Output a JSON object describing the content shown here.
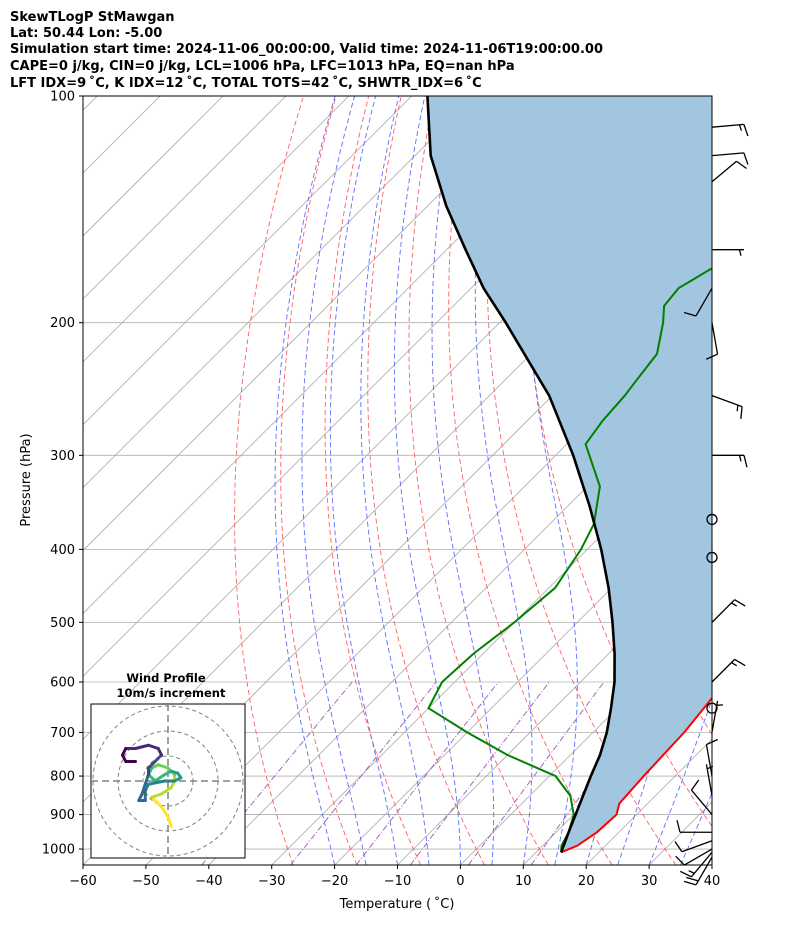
{
  "header": {
    "line1": "SkewTLogP StMawgan",
    "line2": "Lat: 50.44   Lon: -5.00",
    "line3": "Simulation start time: 2024-11-06_00:00:00, Valid time: 2024-11-06T19:00:00.00",
    "line4": "CAPE=0 j/kg, CIN=0 j/kg, LCL=1006 hPa, LFC=1013 hPa, EQ=nan hPa",
    "line5": "LFT IDX=9$^\\circ$C, K IDX=12$^\\circ$C, TOTAL TOTS=42$^\\circ$C, SHWTR_IDX=6$^\\circ$C"
  },
  "header_display": {
    "line5": "LFT IDX=9 ˚C, K IDX=12 ˚C, TOTAL TOTS=42 ˚C, SHWTR_IDX=6 ˚C"
  },
  "hodograph": {
    "title": "Wind Profile",
    "subtitle": "10m/s increment"
  },
  "chart_data": {
    "type": "line",
    "xlabel": "Temperature ( ˚C)",
    "ylabel": "Pressure (hPa)",
    "xlim": [
      -60,
      40
    ],
    "ylim": [
      1050,
      100
    ],
    "y_scale": "log",
    "skew": "45deg",
    "x_ticks": [
      "−60",
      "−50",
      "−40",
      "−30",
      "−20",
      "−10",
      "0",
      "10",
      "20",
      "30",
      "40"
    ],
    "y_ticks": [
      "100",
      "200",
      "300",
      "400",
      "500",
      "600",
      "700",
      "800",
      "900",
      "1000"
    ],
    "grid": true,
    "series": [
      {
        "role": "temperature",
        "color": "#ff0000",
        "points": [
          [
            14.0,
            1010
          ],
          [
            15.5,
            990
          ],
          [
            16.5,
            950
          ],
          [
            16.8,
            900
          ],
          [
            15.5,
            870
          ],
          [
            15.0,
            800
          ],
          [
            14.5,
            700
          ],
          [
            13.0,
            600
          ],
          [
            10.5,
            550
          ],
          [
            7.5,
            500
          ],
          [
            3.5,
            450
          ],
          [
            -1.0,
            400
          ],
          [
            -6.0,
            350
          ],
          [
            -12.0,
            300
          ],
          [
            -17.0,
            250
          ],
          [
            -23.0,
            200
          ],
          [
            -28.0,
            190
          ],
          [
            -30.0,
            180
          ],
          [
            -33.0,
            170
          ],
          [
            -39.0,
            150
          ],
          [
            -45.0,
            140
          ],
          [
            -55.0,
            120
          ],
          [
            -65.0,
            100
          ]
        ]
      },
      {
        "role": "dewpoint",
        "color": "#008000",
        "points": [
          [
            14.0,
            1010
          ],
          [
            13.0,
            990
          ],
          [
            12.0,
            950
          ],
          [
            10.0,
            900
          ],
          [
            6.5,
            850
          ],
          [
            1.0,
            800
          ],
          [
            -10.0,
            750
          ],
          [
            -20.0,
            700
          ],
          [
            -30.0,
            650
          ],
          [
            -32.0,
            600
          ],
          [
            -31.5,
            550
          ],
          [
            -30.0,
            500
          ],
          [
            -29.0,
            450
          ],
          [
            -31.0,
            400
          ],
          [
            -33.0,
            370
          ],
          [
            -38.0,
            330
          ],
          [
            -47.0,
            290
          ],
          [
            -48.0,
            270
          ],
          [
            -48.5,
            250
          ],
          [
            -49.0,
            240
          ],
          [
            -50.0,
            220
          ],
          [
            -54.0,
            200
          ],
          [
            -56.5,
            190
          ],
          [
            -57.0,
            180
          ],
          [
            -55.0,
            170
          ],
          [
            -51.0,
            160
          ],
          [
            -54.0,
            150
          ],
          [
            -61.0,
            140
          ],
          [
            -65.0,
            130
          ],
          [
            -67.0,
            120
          ],
          [
            -67.0,
            110
          ],
          [
            -68.0,
            100
          ]
        ]
      },
      {
        "role": "parcel",
        "color": "#000000",
        "points": [
          [
            14.0,
            1010
          ],
          [
            12.0,
            950
          ],
          [
            10.3,
            900
          ],
          [
            8.5,
            850
          ],
          [
            6.6,
            800
          ],
          [
            4.7,
            750
          ],
          [
            2.2,
            700
          ],
          [
            -1.0,
            650
          ],
          [
            -4.6,
            600
          ],
          [
            -9.1,
            550
          ],
          [
            -14.4,
            500
          ],
          [
            -20.5,
            450
          ],
          [
            -27.8,
            400
          ],
          [
            -36.6,
            350
          ],
          [
            -47.2,
            300
          ],
          [
            -60.5,
            250
          ],
          [
            -79.0,
            200
          ],
          [
            -88.0,
            180
          ],
          [
            -97.0,
            160
          ],
          [
            -107.0,
            140
          ],
          [
            -117.5,
            120
          ],
          [
            -127.5,
            100
          ]
        ]
      }
    ],
    "shading": {
      "between": [
        "parcel",
        "temperature"
      ],
      "color": "#a3c6e0"
    },
    "reference_lines": {
      "isotherms": {
        "color": "#a9a9a9",
        "every": 10
      },
      "dry_adiabats": {
        "color": "#ff6060",
        "style": "dashed"
      },
      "moist_adiabats": {
        "color": "#5a6dff",
        "style": "dashed"
      },
      "mixing_ratio": {
        "color": "#9b59b6",
        "style": "dashdot"
      }
    },
    "wind_barbs": [
      {
        "p": 1025,
        "dir": 210,
        "speed_kt": 20
      },
      {
        "p": 1010,
        "dir": 220,
        "speed_kt": 15
      },
      {
        "p": 1000,
        "dir": 240,
        "speed_kt": 10
      },
      {
        "p": 975,
        "dir": 250,
        "speed_kt": 10
      },
      {
        "p": 950,
        "dir": 270,
        "speed_kt": 10
      },
      {
        "p": 900,
        "dir": 320,
        "speed_kt": 10
      },
      {
        "p": 850,
        "dir": 350,
        "speed_kt": 5
      },
      {
        "p": 800,
        "dir": 350,
        "speed_kt": 10
      },
      {
        "p": 700,
        "dir": 10,
        "speed_kt": 5
      },
      {
        "p": 650,
        "dir": 0,
        "speed_kt": 0
      },
      {
        "p": 600,
        "dir": 45,
        "speed_kt": 15
      },
      {
        "p": 500,
        "dir": 45,
        "speed_kt": 15
      },
      {
        "p": 410,
        "dir": 0,
        "speed_kt": 0
      },
      {
        "p": 365,
        "dir": 0,
        "speed_kt": 0
      },
      {
        "p": 300,
        "dir": 90,
        "speed_kt": 15
      },
      {
        "p": 250,
        "dir": 110,
        "speed_kt": 15
      },
      {
        "p": 200,
        "dir": 170,
        "speed_kt": 10
      },
      {
        "p": 180,
        "dir": 210,
        "speed_kt": 10
      },
      {
        "p": 160,
        "dir": 90,
        "speed_kt": 5
      },
      {
        "p": 130,
        "dir": 50,
        "speed_kt": 10
      },
      {
        "p": 120,
        "dir": 85,
        "speed_kt": 10
      },
      {
        "p": 110,
        "dir": 85,
        "speed_kt": 15
      }
    ],
    "hodograph": {
      "ring_step_ms": 10,
      "rings": 3,
      "colormap": "viridis",
      "u_v_points_ms": [
        [
          0.5,
          -7
        ],
        [
          0,
          -5.5
        ],
        [
          -1,
          -4
        ],
        [
          -2,
          -3
        ],
        [
          -2.5,
          -2.5
        ],
        [
          -1,
          -2
        ],
        [
          0.5,
          -1
        ],
        [
          1,
          0
        ],
        [
          1,
          1
        ],
        [
          0,
          2
        ],
        [
          -1.5,
          2.5
        ],
        [
          -2.5,
          2
        ],
        [
          -3,
          1
        ],
        [
          -2,
          0
        ],
        [
          -0.5,
          1
        ],
        [
          0.5,
          1.5
        ],
        [
          1.5,
          1.2
        ],
        [
          2,
          0.5
        ],
        [
          1,
          0
        ],
        [
          -0.5,
          0
        ],
        [
          -2,
          -0.3
        ],
        [
          -3,
          -0.5
        ],
        [
          -3.5,
          -1.5
        ],
        [
          -3.5,
          -3
        ],
        [
          -4.5,
          -3
        ],
        [
          -4,
          -2
        ],
        [
          -3,
          1
        ],
        [
          -3,
          2
        ],
        [
          -2,
          3
        ],
        [
          -1,
          4
        ],
        [
          -1.5,
          5
        ],
        [
          -3,
          5.5
        ],
        [
          -5,
          5
        ],
        [
          -6.5,
          5
        ],
        [
          -7,
          4
        ],
        [
          -6.5,
          3
        ],
        [
          -5,
          3
        ]
      ]
    }
  }
}
